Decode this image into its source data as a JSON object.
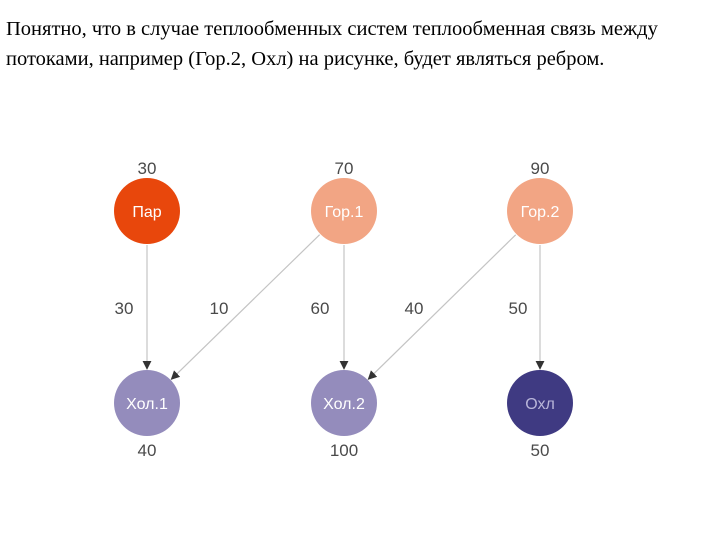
{
  "text": "Понятно, что в случае теплообменных систем теплообменная связь между потоками, например (Гор.2, Охл) на рисунке, будет являться ребром.",
  "nodes": [
    {
      "id": "par",
      "label": "Пар",
      "value": "30",
      "color": "#e8470c",
      "text_color": "#ffffff"
    },
    {
      "id": "gor1",
      "label": "Гор.1",
      "value": "70",
      "color": "#f2a584",
      "text_color": "#ffffff"
    },
    {
      "id": "gor2",
      "label": "Гор.2",
      "value": "90",
      "color": "#f2a584",
      "text_color": "#ffffff"
    },
    {
      "id": "hol1",
      "label": "Хол.1",
      "value": "40",
      "color": "#948cbc",
      "text_color": "#ffffff"
    },
    {
      "id": "hol2",
      "label": "Хол.2",
      "value": "100",
      "color": "#948cbc",
      "text_color": "#ffffff"
    },
    {
      "id": "ohl",
      "label": "Охл",
      "value": "50",
      "color": "#3f3a82",
      "text_color": "#b9b6d9"
    }
  ],
  "edges": [
    {
      "from": "par",
      "to": "hol1",
      "value": "30"
    },
    {
      "from": "gor1",
      "to": "hol1",
      "value": "10"
    },
    {
      "from": "gor1",
      "to": "hol2",
      "value": "60"
    },
    {
      "from": "gor2",
      "to": "hol2",
      "value": "40"
    },
    {
      "from": "gor2",
      "to": "ohl",
      "value": "50"
    }
  ],
  "edge_color": "#c4c4c4"
}
